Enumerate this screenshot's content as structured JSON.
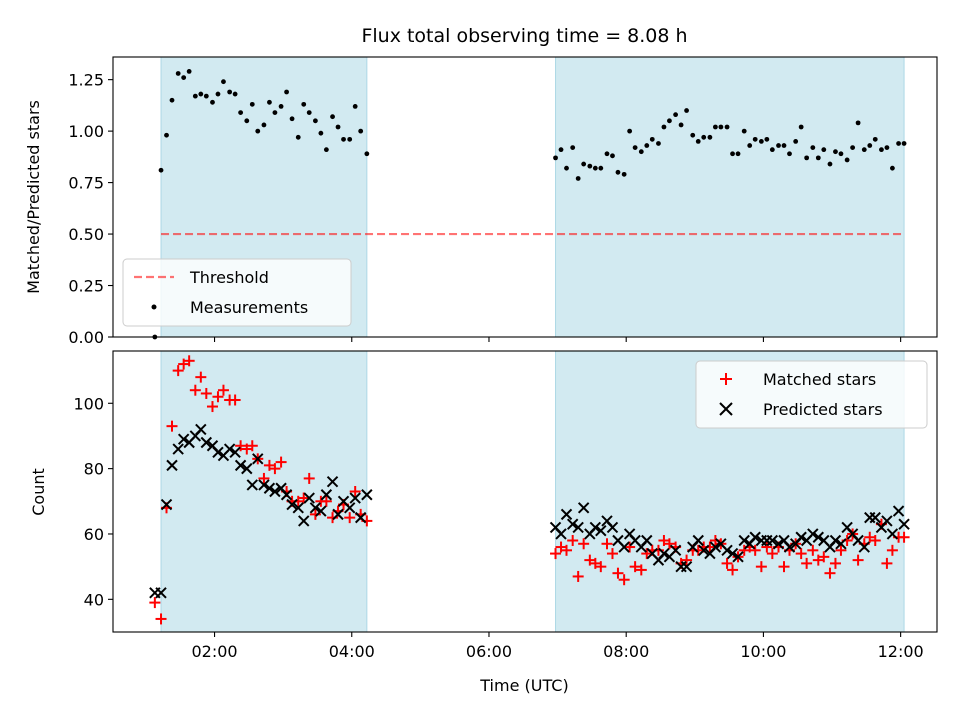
{
  "title": "Flux total observing time = 8.08 h",
  "colors": {
    "span": "#add8e6",
    "threshold": "#ff0000",
    "measurements": "#000000",
    "matched": "#ff0000",
    "predicted": "#000000"
  },
  "chart_data": [
    {
      "type": "scatter",
      "panel": "top",
      "title": "Flux total observing time = 8.08 h",
      "xlabel": "",
      "ylabel": "Matched/Predicted stars",
      "xlim": [
        0.52,
        12.53
      ],
      "ylim": [
        0,
        1.36
      ],
      "yticks": [
        0.0,
        0.25,
        0.5,
        0.75,
        1.0,
        1.25
      ],
      "ytick_labels": [
        "0.00",
        "0.25",
        "0.50",
        "0.75",
        "1.00",
        "1.25"
      ],
      "xticks": [
        2,
        4,
        6,
        8,
        10,
        12
      ],
      "x_unit": "hours UTC",
      "shaded_intervals": [
        [
          1.22,
          4.22
        ],
        [
          6.97,
          12.05
        ]
      ],
      "grid": false,
      "legend_position": "lower-left",
      "threshold": {
        "name": "Threshold",
        "y": 0.5,
        "x_range": [
          1.22,
          12.05
        ],
        "style": "dashed"
      },
      "series": [
        {
          "name": "Measurements",
          "marker": "dot",
          "x": [
            1.13,
            1.22,
            1.3,
            1.38,
            1.47,
            1.55,
            1.63,
            1.72,
            1.8,
            1.88,
            1.97,
            2.05,
            2.13,
            2.22,
            2.3,
            2.38,
            2.47,
            2.55,
            2.63,
            2.72,
            2.8,
            2.88,
            2.97,
            3.05,
            3.13,
            3.22,
            3.3,
            3.38,
            3.47,
            3.55,
            3.63,
            3.72,
            3.8,
            3.88,
            3.97,
            4.05,
            4.13,
            4.22,
            6.97,
            7.05,
            7.13,
            7.22,
            7.3,
            7.38,
            7.47,
            7.55,
            7.63,
            7.72,
            7.8,
            7.88,
            7.97,
            8.05,
            8.13,
            8.22,
            8.3,
            8.38,
            8.47,
            8.55,
            8.63,
            8.72,
            8.8,
            8.88,
            8.97,
            9.05,
            9.13,
            9.22,
            9.3,
            9.38,
            9.47,
            9.55,
            9.63,
            9.72,
            9.8,
            9.88,
            9.97,
            10.05,
            10.13,
            10.22,
            10.3,
            10.38,
            10.47,
            10.55,
            10.63,
            10.72,
            10.8,
            10.88,
            10.97,
            11.05,
            11.13,
            11.22,
            11.3,
            11.38,
            11.47,
            11.55,
            11.63,
            11.72,
            11.8,
            11.88,
            11.97,
            12.05
          ],
          "y": [
            0.0,
            0.81,
            0.98,
            1.15,
            1.28,
            1.26,
            1.29,
            1.17,
            1.18,
            1.17,
            1.14,
            1.18,
            1.24,
            1.19,
            1.18,
            1.09,
            1.05,
            1.13,
            1.0,
            1.03,
            1.14,
            1.09,
            1.12,
            1.19,
            1.06,
            0.97,
            1.13,
            1.09,
            1.05,
            0.99,
            0.91,
            1.07,
            1.02,
            0.96,
            0.96,
            1.12,
            1.0,
            0.89,
            0.87,
            0.91,
            0.82,
            0.92,
            0.77,
            0.84,
            0.83,
            0.82,
            0.82,
            0.89,
            0.88,
            0.8,
            0.79,
            1.0,
            0.92,
            0.9,
            0.93,
            0.96,
            0.94,
            1.02,
            1.05,
            1.08,
            1.03,
            1.1,
            0.98,
            0.95,
            0.97,
            0.97,
            1.02,
            1.02,
            1.02,
            0.89,
            0.89,
            1.0,
            0.93,
            0.96,
            0.95,
            0.96,
            0.91,
            0.93,
            0.93,
            0.89,
            0.95,
            1.02,
            0.87,
            0.92,
            0.87,
            0.91,
            0.84,
            0.9,
            0.89,
            0.86,
            0.92,
            1.04,
            0.91,
            0.93,
            0.96,
            0.91,
            0.92,
            0.82,
            0.94,
            0.94
          ]
        }
      ]
    },
    {
      "type": "scatter",
      "panel": "bottom",
      "xlabel": "Time (UTC)",
      "ylabel": "Count",
      "xlim": [
        0.52,
        12.53
      ],
      "ylim": [
        30,
        116
      ],
      "yticks": [
        40,
        60,
        80,
        100
      ],
      "ytick_labels": [
        "40",
        "60",
        "80",
        "100"
      ],
      "xticks": [
        2,
        4,
        6,
        8,
        10,
        12
      ],
      "xtick_labels": [
        "02:00",
        "04:00",
        "06:00",
        "08:00",
        "10:00",
        "12:00"
      ],
      "shaded_intervals": [
        [
          1.22,
          4.22
        ],
        [
          6.97,
          12.05
        ]
      ],
      "grid": false,
      "legend_position": "upper-right",
      "series": [
        {
          "name": "Matched stars",
          "marker": "plus",
          "x": [
            1.13,
            1.22,
            1.3,
            1.38,
            1.47,
            1.55,
            1.63,
            1.72,
            1.8,
            1.88,
            1.97,
            2.05,
            2.13,
            2.22,
            2.3,
            2.38,
            2.47,
            2.55,
            2.63,
            2.72,
            2.8,
            2.88,
            2.97,
            3.05,
            3.13,
            3.22,
            3.3,
            3.38,
            3.47,
            3.55,
            3.63,
            3.72,
            3.8,
            3.88,
            3.97,
            4.05,
            4.13,
            4.22,
            6.97,
            7.05,
            7.13,
            7.22,
            7.3,
            7.38,
            7.47,
            7.55,
            7.63,
            7.72,
            7.8,
            7.88,
            7.97,
            8.05,
            8.13,
            8.22,
            8.3,
            8.38,
            8.47,
            8.55,
            8.63,
            8.72,
            8.8,
            8.88,
            8.97,
            9.05,
            9.13,
            9.22,
            9.3,
            9.38,
            9.47,
            9.55,
            9.63,
            9.72,
            9.8,
            9.88,
            9.97,
            10.05,
            10.13,
            10.22,
            10.3,
            10.38,
            10.47,
            10.55,
            10.63,
            10.72,
            10.8,
            10.88,
            10.97,
            11.05,
            11.13,
            11.22,
            11.3,
            11.38,
            11.47,
            11.55,
            11.63,
            11.72,
            11.8,
            11.88,
            11.97,
            12.05
          ],
          "y": [
            39,
            34,
            68,
            93,
            110,
            112,
            113,
            104,
            108,
            103,
            99,
            102,
            104,
            101,
            101,
            87,
            86,
            87,
            83,
            77,
            81,
            80,
            82,
            73,
            70,
            70,
            71,
            77,
            66,
            70,
            70,
            65,
            67,
            69,
            65,
            73,
            66,
            64,
            54,
            56,
            55,
            58,
            47,
            57,
            52,
            51,
            50,
            57,
            54,
            48,
            46,
            56,
            50,
            49,
            54,
            55,
            55,
            58,
            57,
            56,
            51,
            52,
            55,
            55,
            56,
            56,
            58,
            57,
            51,
            49,
            53,
            55,
            56,
            55,
            50,
            56,
            54,
            56,
            50,
            55,
            57,
            54,
            51,
            55,
            52,
            53,
            48,
            51,
            55,
            58,
            60,
            52,
            57,
            59,
            58,
            63,
            51,
            55,
            59,
            59
          ]
        },
        {
          "name": "Predicted stars",
          "marker": "x",
          "x": [
            1.13,
            1.22,
            1.3,
            1.38,
            1.47,
            1.55,
            1.63,
            1.72,
            1.8,
            1.88,
            1.97,
            2.05,
            2.13,
            2.22,
            2.3,
            2.38,
            2.47,
            2.55,
            2.63,
            2.72,
            2.8,
            2.88,
            2.97,
            3.05,
            3.13,
            3.22,
            3.3,
            3.38,
            3.47,
            3.55,
            3.63,
            3.72,
            3.8,
            3.88,
            3.97,
            4.05,
            4.13,
            4.22,
            6.97,
            7.05,
            7.13,
            7.22,
            7.3,
            7.38,
            7.47,
            7.55,
            7.63,
            7.72,
            7.8,
            7.88,
            7.97,
            8.05,
            8.13,
            8.22,
            8.3,
            8.38,
            8.47,
            8.55,
            8.63,
            8.72,
            8.8,
            8.88,
            8.97,
            9.05,
            9.13,
            9.22,
            9.3,
            9.38,
            9.47,
            9.55,
            9.63,
            9.72,
            9.8,
            9.88,
            9.97,
            10.05,
            10.13,
            10.22,
            10.3,
            10.38,
            10.47,
            10.55,
            10.63,
            10.72,
            10.8,
            10.88,
            10.97,
            11.05,
            11.13,
            11.22,
            11.3,
            11.38,
            11.47,
            11.55,
            11.63,
            11.72,
            11.8,
            11.88,
            11.97,
            12.05
          ],
          "y": [
            42,
            42,
            69,
            81,
            86,
            89,
            88,
            90,
            92,
            88,
            87,
            85,
            84,
            86,
            85,
            81,
            80,
            75,
            83,
            75,
            74,
            73,
            74,
            72,
            69,
            68,
            64,
            71,
            68,
            67,
            72,
            76,
            66,
            70,
            68,
            71,
            65,
            72,
            62,
            60,
            66,
            63,
            62,
            68,
            60,
            62,
            61,
            64,
            62,
            58,
            56,
            60,
            58,
            56,
            58,
            54,
            52,
            54,
            53,
            55,
            50,
            50,
            56,
            58,
            55,
            54,
            56,
            57,
            55,
            54,
            53,
            58,
            57,
            59,
            58,
            58,
            58,
            57,
            58,
            56,
            57,
            59,
            58,
            60,
            59,
            58,
            56,
            58,
            57,
            62,
            60,
            58,
            56,
            65,
            65,
            62,
            64,
            60,
            67,
            63
          ]
        }
      ]
    }
  ]
}
